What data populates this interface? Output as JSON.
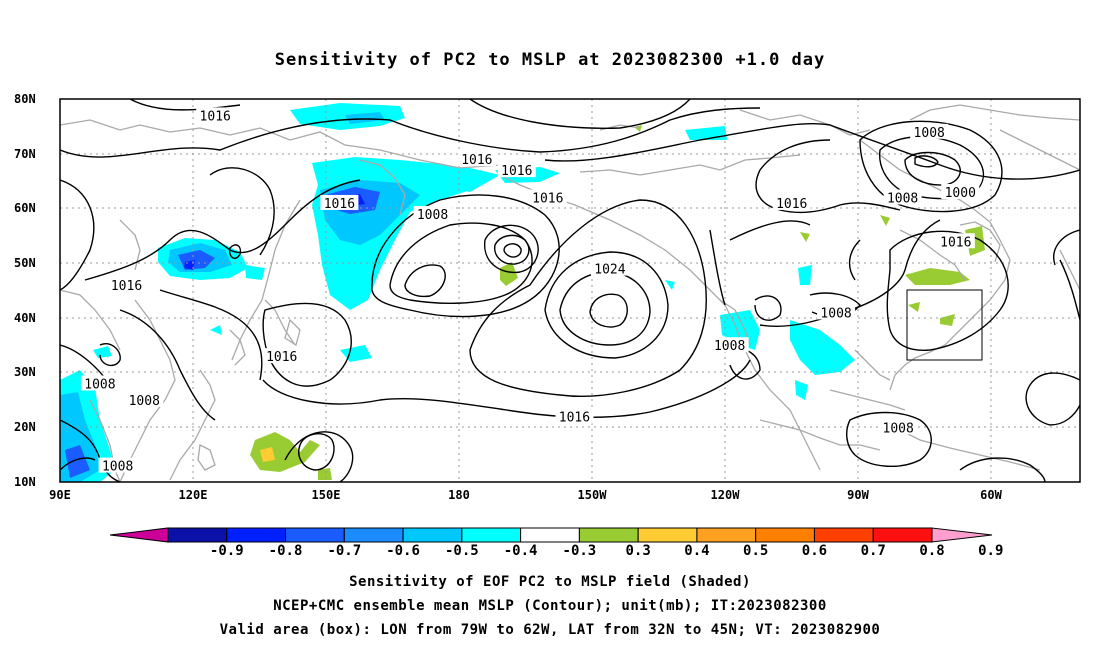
{
  "title": "Sensitivity of PC2 to MSLP at 2023082300 +1.0 day",
  "map": {
    "lat_labels": [
      "80N",
      "70N",
      "60N",
      "50N",
      "40N",
      "30N",
      "20N",
      "10N"
    ],
    "lon_labels": [
      "90E",
      "120E",
      "150E",
      "180",
      "150W",
      "120W",
      "90W",
      "60W"
    ],
    "contour_unit": "mb",
    "contour_labels": [
      {
        "text": "1016",
        "lat": 77,
        "lon": 125
      },
      {
        "text": "1016",
        "lat": 69,
        "lon": -176
      },
      {
        "text": "1016",
        "lat": 67,
        "lon": -167
      },
      {
        "text": "1016",
        "lat": 61,
        "lon": 153
      },
      {
        "text": "1016",
        "lat": 62,
        "lon": -160
      },
      {
        "text": "1008",
        "lat": 74,
        "lon": -74
      },
      {
        "text": "1000",
        "lat": 63,
        "lon": -67
      },
      {
        "text": "1016",
        "lat": 61,
        "lon": -105
      },
      {
        "text": "1008",
        "lat": 62,
        "lon": -80
      },
      {
        "text": "1008",
        "lat": 59,
        "lon": 174
      },
      {
        "text": "1016",
        "lat": 54,
        "lon": -68
      },
      {
        "text": "1024",
        "lat": 49,
        "lon": -146
      },
      {
        "text": "1016",
        "lat": 46,
        "lon": 105
      },
      {
        "text": "1008",
        "lat": 41,
        "lon": -95
      },
      {
        "text": "1008",
        "lat": 35,
        "lon": -119
      },
      {
        "text": "1016",
        "lat": 33,
        "lon": 140
      },
      {
        "text": "1008",
        "lat": 28,
        "lon": 99
      },
      {
        "text": "1008",
        "lat": 25,
        "lon": 109
      },
      {
        "text": "1016",
        "lat": 22,
        "lon": -154
      },
      {
        "text": "1008",
        "lat": 20,
        "lon": -81
      },
      {
        "text": "1008",
        "lat": 13,
        "lon": 103
      }
    ],
    "valid_box": {
      "lon_from": -79,
      "lon_to": -62,
      "lat_from": 32,
      "lat_to": 45
    }
  },
  "colorbar": {
    "labels": [
      "-0.9",
      "-0.8",
      "-0.7",
      "-0.6",
      "-0.5",
      "-0.4",
      "-0.3",
      "0.3",
      "0.4",
      "0.5",
      "0.6",
      "0.7",
      "0.8",
      "0.9"
    ],
    "colors": [
      "#cc0099",
      "#0a10a8",
      "#0020ff",
      "#1a5cff",
      "#1a8cff",
      "#00c8ff",
      "#00ffff",
      "#ffffff",
      "#99cc33",
      "#ffcc33",
      "#ffa020",
      "#ff8000",
      "#ff4000",
      "#ff1010",
      "#ff9fd0"
    ]
  },
  "captions": [
    "Sensitivity of EOF PC2 to MSLP field (Shaded)",
    "NCEP+CMC ensemble mean MSLP (Contour); unit(mb); IT:2023082300",
    "Valid area (box): LON from 79W to 62W, LAT from 32N to 45N; VT: 2023082900"
  ]
}
